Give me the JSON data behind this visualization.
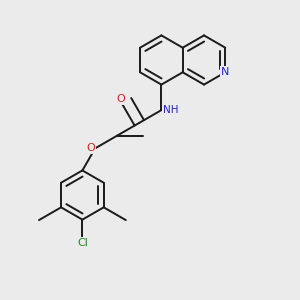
{
  "bg_color": "#ebebeb",
  "bond_color": "#1a1a1a",
  "N_color": "#2222cc",
  "O_color": "#cc2222",
  "Cl_color": "#228822",
  "line_width": 1.4,
  "dbo": 0.018,
  "figsize": [
    3.0,
    3.0
  ],
  "dpi": 100,
  "xlim": [
    0.0,
    1.0
  ],
  "ylim": [
    0.0,
    1.0
  ]
}
